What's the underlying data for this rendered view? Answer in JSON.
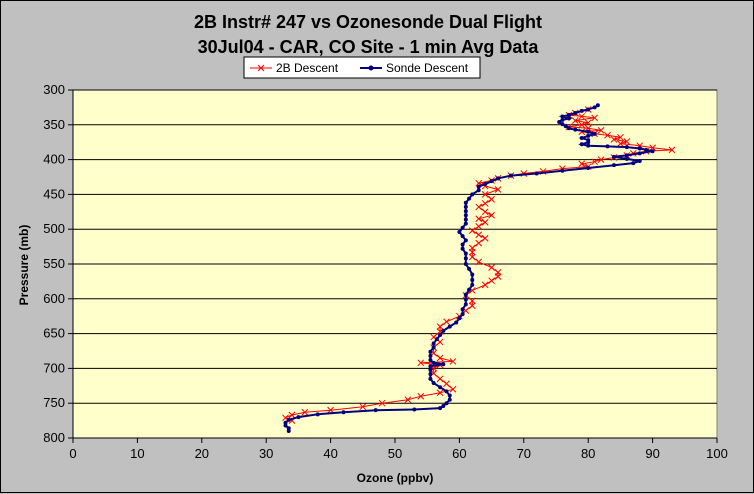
{
  "chart_data": {
    "type": "scatter",
    "title": "2B Instr# 247 vs Ozonesonde Dual Flight",
    "subtitle": "30Jul04 - CAR, CO Site - 1 min Avg Data",
    "xlabel": "Ozone (ppbv)",
    "ylabel": "Pressure (mb)",
    "xlim": [
      0,
      100
    ],
    "ylim": [
      300,
      800
    ],
    "y_inverted": true,
    "xticks": [
      "0",
      "10",
      "20",
      "30",
      "40",
      "50",
      "60",
      "70",
      "80",
      "90",
      "100"
    ],
    "yticks": [
      "300",
      "350",
      "400",
      "450",
      "500",
      "550",
      "600",
      "650",
      "700",
      "750",
      "800"
    ],
    "grid": "horizontal",
    "legend": "top-center",
    "plot_background": "#ffffcc",
    "series": [
      {
        "name": "2B Descent",
        "color": "#ff0000",
        "marker": "x",
        "points": [
          [
            80,
            328
          ],
          [
            78,
            333
          ],
          [
            77,
            336
          ],
          [
            79,
            338
          ],
          [
            81,
            340
          ],
          [
            78,
            344
          ],
          [
            80,
            347
          ],
          [
            79,
            350
          ],
          [
            77,
            353
          ],
          [
            80,
            355
          ],
          [
            82,
            358
          ],
          [
            79,
            360
          ],
          [
            81,
            363
          ],
          [
            83,
            365
          ],
          [
            85,
            368
          ],
          [
            84,
            371
          ],
          [
            86,
            374
          ],
          [
            85,
            377
          ],
          [
            88,
            380
          ],
          [
            90,
            383
          ],
          [
            93,
            386
          ],
          [
            89,
            388
          ],
          [
            87,
            391
          ],
          [
            86,
            394
          ],
          [
            84,
            397
          ],
          [
            82,
            400
          ],
          [
            81,
            403
          ],
          [
            79,
            406
          ],
          [
            80,
            410
          ],
          [
            76,
            413
          ],
          [
            73,
            417
          ],
          [
            70,
            420
          ],
          [
            68,
            423
          ],
          [
            66,
            427
          ],
          [
            65,
            430
          ],
          [
            63,
            434
          ],
          [
            64,
            438
          ],
          [
            66,
            443
          ],
          [
            64,
            450
          ],
          [
            65,
            457
          ],
          [
            64,
            463
          ],
          [
            63,
            468
          ],
          [
            64,
            475
          ],
          [
            65,
            480
          ],
          [
            63,
            485
          ],
          [
            64,
            490
          ],
          [
            63,
            496
          ],
          [
            62,
            502
          ],
          [
            63,
            508
          ],
          [
            64,
            513
          ],
          [
            63,
            520
          ],
          [
            62,
            527
          ],
          [
            62,
            533
          ],
          [
            62,
            540
          ],
          [
            63,
            547
          ],
          [
            65,
            555
          ],
          [
            66,
            562
          ],
          [
            66,
            568
          ],
          [
            65,
            574
          ],
          [
            64,
            580
          ],
          [
            62,
            588
          ],
          [
            61,
            595
          ],
          [
            62,
            603
          ],
          [
            62,
            610
          ],
          [
            61,
            617
          ],
          [
            60,
            625
          ],
          [
            58,
            633
          ],
          [
            57,
            640
          ],
          [
            57,
            647
          ],
          [
            56,
            655
          ],
          [
            57,
            662
          ],
          [
            56,
            670
          ],
          [
            56,
            678
          ],
          [
            57,
            685
          ],
          [
            59,
            690
          ],
          [
            54,
            692
          ],
          [
            57,
            695
          ],
          [
            56,
            700
          ],
          [
            56,
            707
          ],
          [
            57,
            715
          ],
          [
            58,
            722
          ],
          [
            59,
            730
          ],
          [
            57,
            735
          ],
          [
            54,
            740
          ],
          [
            52,
            745
          ],
          [
            48,
            750
          ],
          [
            45,
            755
          ],
          [
            40,
            760
          ],
          [
            36,
            763
          ],
          [
            34,
            767
          ],
          [
            33,
            771
          ],
          [
            34,
            775
          ]
        ]
      },
      {
        "name": "Sonde Descent",
        "color": "#000080",
        "marker": "dot",
        "points": [
          [
            81.5,
            322
          ],
          [
            81,
            325
          ],
          [
            80,
            328
          ],
          [
            79,
            330
          ],
          [
            78,
            333
          ],
          [
            77,
            336
          ],
          [
            76,
            338
          ],
          [
            77,
            341
          ],
          [
            76,
            343
          ],
          [
            75.5,
            346
          ],
          [
            76,
            349
          ],
          [
            76.5,
            352
          ],
          [
            77,
            355
          ],
          [
            78,
            357
          ],
          [
            80,
            360
          ],
          [
            81,
            363
          ],
          [
            80,
            366
          ],
          [
            79,
            369
          ],
          [
            80,
            372
          ],
          [
            80,
            375
          ],
          [
            79,
            378
          ],
          [
            80,
            380
          ],
          [
            83,
            381
          ],
          [
            86,
            382
          ],
          [
            88,
            384
          ],
          [
            89,
            386
          ],
          [
            90,
            388
          ],
          [
            88,
            391
          ],
          [
            86,
            394
          ],
          [
            84,
            396
          ],
          [
            86,
            399
          ],
          [
            88,
            402
          ],
          [
            87,
            405
          ],
          [
            84,
            408
          ],
          [
            80,
            412
          ],
          [
            76,
            416
          ],
          [
            72,
            420
          ],
          [
            68,
            423
          ],
          [
            66,
            427
          ],
          [
            65,
            431
          ],
          [
            64,
            435
          ],
          [
            63,
            439
          ],
          [
            63,
            444
          ],
          [
            62,
            450
          ],
          [
            61.5,
            456
          ],
          [
            61,
            462
          ],
          [
            61,
            468
          ],
          [
            61,
            474
          ],
          [
            61,
            480
          ],
          [
            61,
            486
          ],
          [
            61,
            492
          ],
          [
            60.5,
            498
          ],
          [
            60,
            504
          ],
          [
            60.5,
            510
          ],
          [
            61,
            516
          ],
          [
            60.5,
            522
          ],
          [
            60.5,
            528
          ],
          [
            61,
            535
          ],
          [
            61,
            542
          ],
          [
            61,
            550
          ],
          [
            61.5,
            557
          ],
          [
            62,
            565
          ],
          [
            62,
            573
          ],
          [
            62,
            580
          ],
          [
            61.5,
            587
          ],
          [
            61,
            594
          ],
          [
            61,
            601
          ],
          [
            61,
            608
          ],
          [
            60.5,
            615
          ],
          [
            60.5,
            622
          ],
          [
            60,
            628
          ],
          [
            59.5,
            634
          ],
          [
            58.5,
            640
          ],
          [
            57.5,
            646
          ],
          [
            57,
            652
          ],
          [
            56.5,
            658
          ],
          [
            56,
            664
          ],
          [
            56,
            670
          ],
          [
            55.5,
            676
          ],
          [
            55.5,
            682
          ],
          [
            55.5,
            688
          ],
          [
            56,
            692
          ],
          [
            57.5,
            694
          ],
          [
            55.5,
            697
          ],
          [
            55.5,
            702
          ],
          [
            55.5,
            708
          ],
          [
            55.5,
            715
          ],
          [
            56,
            721
          ],
          [
            57,
            727
          ],
          [
            58,
            733
          ],
          [
            58.5,
            739
          ],
          [
            58.5,
            745
          ],
          [
            58,
            750
          ],
          [
            57.5,
            754
          ],
          [
            57,
            757
          ],
          [
            53,
            759
          ],
          [
            47,
            760
          ],
          [
            42,
            763
          ],
          [
            38,
            766
          ],
          [
            35,
            770
          ],
          [
            33.5,
            774
          ],
          [
            33,
            778
          ],
          [
            33,
            782
          ],
          [
            33.5,
            786
          ],
          [
            33.5,
            790
          ]
        ]
      }
    ]
  }
}
